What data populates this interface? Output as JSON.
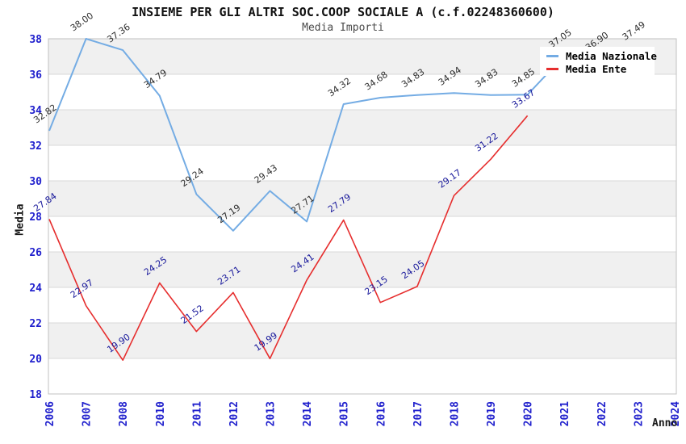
{
  "chart_data": {
    "type": "line",
    "title": "INSIEME PER GLI ALTRI SOC.COOP SOCIALE A (c.f.02248360600)",
    "subtitle": "Media Importi",
    "xlabel": "Anno",
    "ylabel": "Media",
    "ylim": [
      18,
      38
    ],
    "ytick_step": 2,
    "grid": "horizontal alternating bands, light gridlines every 2 units",
    "legend_position": "top-right",
    "categories": [
      "2006",
      "2007",
      "2008",
      "2010",
      "2011",
      "2012",
      "2013",
      "2014",
      "2015",
      "2016",
      "2017",
      "2018",
      "2019",
      "2020",
      "2021",
      "2022",
      "2023",
      "2024"
    ],
    "series": [
      {
        "name": "Media Nazionale",
        "color": "#74ace4",
        "label_color": "#2e2e2e",
        "values": [
          32.82,
          38.0,
          37.36,
          34.79,
          29.24,
          27.19,
          29.43,
          27.71,
          34.32,
          34.68,
          34.83,
          34.94,
          34.83,
          34.85,
          37.05,
          36.9,
          37.49,
          null
        ],
        "note": "2022 point label is obscured by the legend box in the screenshot; 36.9 is an estimate of that hidden value"
      },
      {
        "name": "Media Ente",
        "color": "#e62e2e",
        "label_color": "#18189b",
        "values": [
          27.84,
          22.97,
          19.9,
          24.25,
          21.52,
          23.71,
          19.99,
          24.41,
          27.79,
          23.15,
          24.05,
          29.17,
          31.22,
          33.67,
          null,
          null,
          null,
          null
        ]
      }
    ],
    "colors": {
      "tick_label": "#2121cd",
      "band_gray": "#f0f0f0",
      "band_white": "#ffffff",
      "gridline": "#d9d9d9",
      "plot_border": "#c0c0c0"
    }
  }
}
